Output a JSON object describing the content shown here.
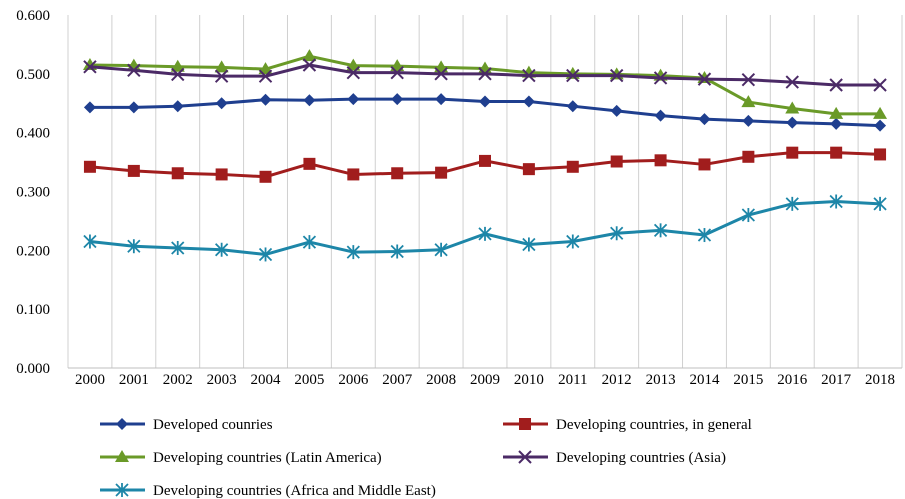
{
  "chart_data": {
    "type": "line",
    "title": "",
    "xlabel": "",
    "ylabel": "",
    "ylim": [
      0,
      0.6
    ],
    "y_ticks": [
      "0.000",
      "0.100",
      "0.200",
      "0.300",
      "0.400",
      "0.500",
      "0.600"
    ],
    "grid": "vertical",
    "legend_position": "bottom",
    "categories": [
      "2000",
      "2001",
      "2002",
      "2003",
      "2004",
      "2005",
      "2006",
      "2007",
      "2008",
      "2009",
      "2010",
      "2011",
      "2012",
      "2013",
      "2014",
      "2015",
      "2016",
      "2017",
      "2018"
    ],
    "series": [
      {
        "name": "Developed counries",
        "color": "#1f3f8f",
        "marker": "diamond",
        "values": [
          0.443,
          0.443,
          0.445,
          0.45,
          0.456,
          0.455,
          0.457,
          0.457,
          0.457,
          0.453,
          0.453,
          0.445,
          0.437,
          0.429,
          0.423,
          0.42,
          0.417,
          0.415,
          0.412
        ]
      },
      {
        "name": "Developing countries, in general",
        "color": "#a11d1d",
        "marker": "square",
        "values": [
          0.342,
          0.335,
          0.331,
          0.329,
          0.325,
          0.347,
          0.329,
          0.331,
          0.332,
          0.352,
          0.338,
          0.342,
          0.351,
          0.353,
          0.346,
          0.359,
          0.366,
          0.366,
          0.363
        ]
      },
      {
        "name": "Developing countries (Latin America)",
        "color": "#6a9a28",
        "marker": "triangle",
        "values": [
          0.515,
          0.514,
          0.512,
          0.511,
          0.508,
          0.53,
          0.514,
          0.513,
          0.511,
          0.509,
          0.502,
          0.5,
          0.499,
          0.497,
          0.493,
          0.452,
          0.441,
          0.432,
          0.432
        ]
      },
      {
        "name": "Developing countries (Asia)",
        "color": "#4b2a66",
        "marker": "x",
        "values": [
          0.512,
          0.506,
          0.499,
          0.496,
          0.496,
          0.515,
          0.502,
          0.502,
          0.5,
          0.5,
          0.497,
          0.497,
          0.497,
          0.493,
          0.491,
          0.49,
          0.486,
          0.481,
          0.481
        ]
      },
      {
        "name": "Developing countries (Africa and Middle East)",
        "color": "#1d86a8",
        "marker": "star",
        "values": [
          0.215,
          0.207,
          0.204,
          0.201,
          0.193,
          0.214,
          0.197,
          0.198,
          0.201,
          0.228,
          0.21,
          0.215,
          0.229,
          0.234,
          0.226,
          0.26,
          0.279,
          0.283,
          0.279
        ]
      }
    ]
  }
}
